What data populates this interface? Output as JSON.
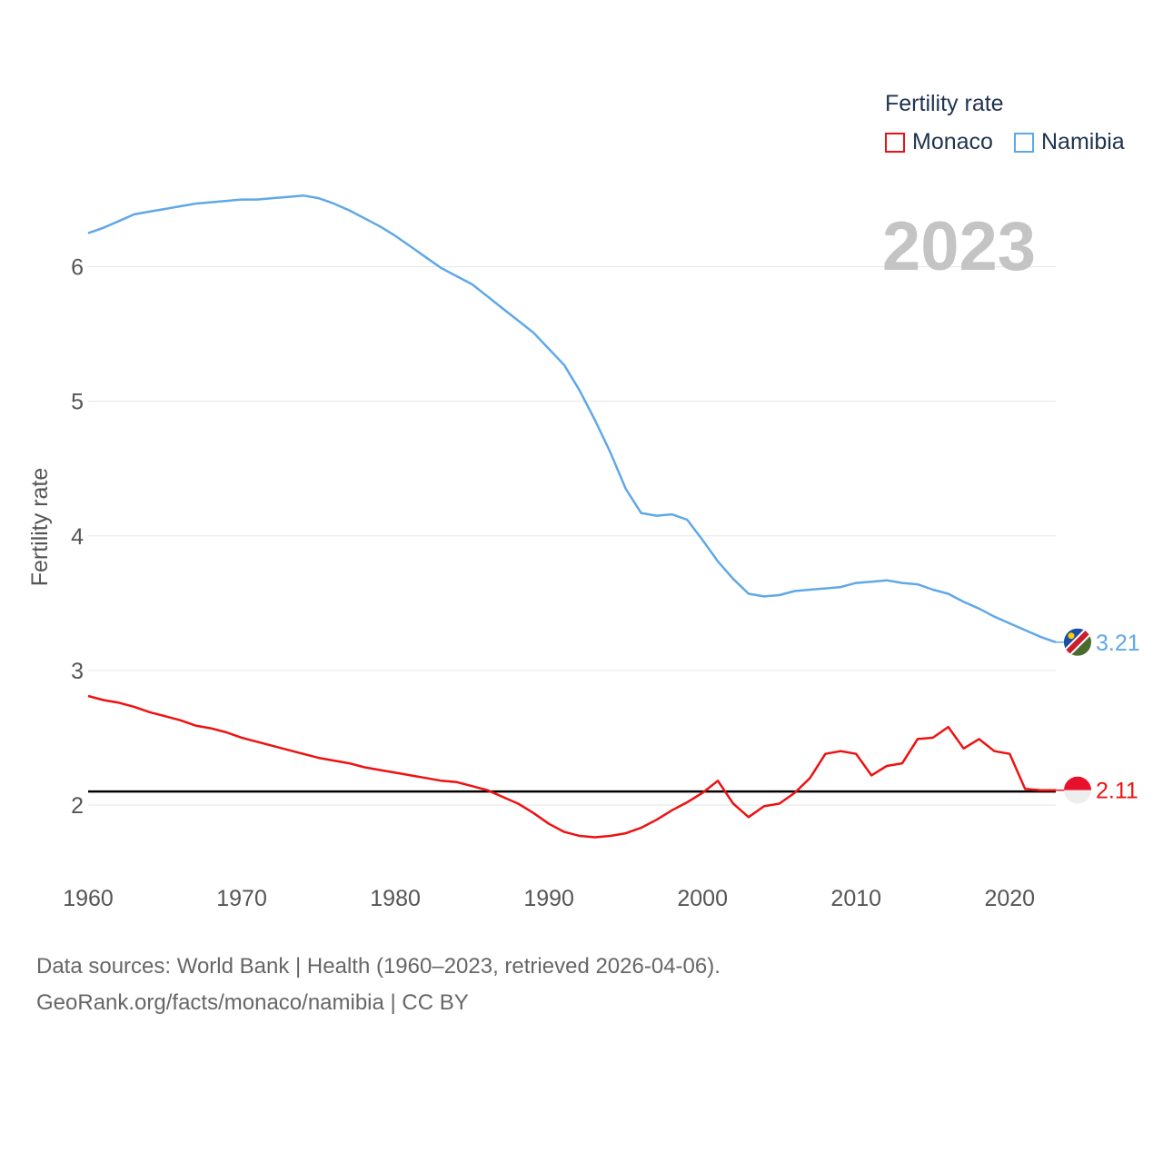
{
  "legend": {
    "title": "Fertility rate",
    "items": [
      {
        "label": "Monaco",
        "color": "#ee1111"
      },
      {
        "label": "Namibia",
        "color": "#5fa8e8"
      }
    ]
  },
  "year_label": "2023",
  "footer": {
    "line1": "Data sources: World Bank | Health (1960–2023, retrieved 2026-04-06).",
    "line2": "GeoRank.org/facts/monaco/namibia | CC BY"
  },
  "chart_data": {
    "type": "line",
    "title": "",
    "xlabel": "",
    "ylabel": "Fertility rate",
    "xlim": [
      1960,
      2023
    ],
    "ylim": [
      1.5,
      6.7
    ],
    "x_ticks": [
      1960,
      1970,
      1980,
      1990,
      2000,
      2010,
      2020
    ],
    "y_ticks": [
      2,
      3,
      4,
      5,
      6
    ],
    "grid": true,
    "reference_line": {
      "y": 2.1,
      "color": "#000000"
    },
    "x": [
      1960,
      1961,
      1962,
      1963,
      1964,
      1965,
      1966,
      1967,
      1968,
      1969,
      1970,
      1971,
      1972,
      1973,
      1974,
      1975,
      1976,
      1977,
      1978,
      1979,
      1980,
      1981,
      1982,
      1983,
      1984,
      1985,
      1986,
      1987,
      1988,
      1989,
      1990,
      1991,
      1992,
      1993,
      1994,
      1995,
      1996,
      1997,
      1998,
      1999,
      2000,
      2001,
      2002,
      2003,
      2004,
      2005,
      2006,
      2007,
      2008,
      2009,
      2010,
      2011,
      2012,
      2013,
      2014,
      2015,
      2016,
      2017,
      2018,
      2019,
      2020,
      2021,
      2022,
      2023
    ],
    "series": [
      {
        "name": "Namibia",
        "color": "#5fa8e8",
        "end_label": "3.21",
        "values": [
          6.25,
          6.29,
          6.34,
          6.39,
          6.41,
          6.43,
          6.45,
          6.47,
          6.48,
          6.49,
          6.5,
          6.5,
          6.51,
          6.52,
          6.53,
          6.51,
          6.47,
          6.42,
          6.36,
          6.3,
          6.23,
          6.15,
          6.07,
          5.99,
          5.93,
          5.87,
          5.78,
          5.69,
          5.6,
          5.51,
          5.39,
          5.27,
          5.08,
          4.86,
          4.62,
          4.35,
          4.17,
          4.15,
          4.16,
          4.12,
          3.97,
          3.81,
          3.68,
          3.57,
          3.55,
          3.56,
          3.59,
          3.6,
          3.61,
          3.62,
          3.65,
          3.66,
          3.67,
          3.65,
          3.64,
          3.6,
          3.57,
          3.51,
          3.46,
          3.4,
          3.35,
          3.3,
          3.25,
          3.21
        ]
      },
      {
        "name": "Monaco",
        "color": "#ee1111",
        "end_label": "2.11",
        "values": [
          2.81,
          2.78,
          2.76,
          2.73,
          2.69,
          2.66,
          2.63,
          2.59,
          2.57,
          2.54,
          2.5,
          2.47,
          2.44,
          2.41,
          2.38,
          2.35,
          2.33,
          2.31,
          2.28,
          2.26,
          2.24,
          2.22,
          2.2,
          2.18,
          2.17,
          2.14,
          2.11,
          2.06,
          2.01,
          1.94,
          1.86,
          1.8,
          1.77,
          1.76,
          1.77,
          1.79,
          1.83,
          1.89,
          1.96,
          2.02,
          2.09,
          2.18,
          2.01,
          1.91,
          1.99,
          2.01,
          2.09,
          2.2,
          2.38,
          2.4,
          2.38,
          2.22,
          2.29,
          2.31,
          2.49,
          2.5,
          2.58,
          2.42,
          2.49,
          2.4,
          2.38,
          2.12,
          2.11,
          2.11
        ]
      }
    ]
  }
}
